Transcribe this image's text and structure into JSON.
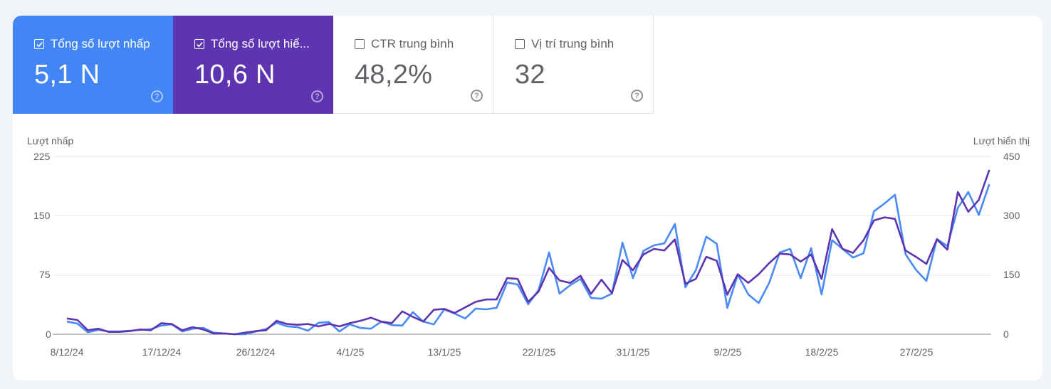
{
  "cards": [
    {
      "label": "Tổng số lượt nhấp",
      "value": "5,1 N",
      "checked": true,
      "color": "#4285f4"
    },
    {
      "label": "Tổng số lượt hiể...",
      "value": "10,6 N",
      "checked": true,
      "color": "#5e35b1"
    },
    {
      "label": "CTR trung bình",
      "value": "48,2%",
      "checked": false,
      "color": "#ffffff"
    },
    {
      "label": "Vị trí trung bình",
      "value": "32",
      "checked": false,
      "color": "#ffffff"
    }
  ],
  "help_glyph": "?",
  "chart": {
    "left_axis_title": "Lượt nhấp",
    "right_axis_title": "Lượt hiển thị",
    "left_ticks": [
      "225",
      "150",
      "75",
      "0"
    ],
    "right_ticks": [
      "450",
      "300",
      "150",
      "0"
    ],
    "x_ticks": [
      "8/12/24",
      "17/12/24",
      "26/12/24",
      "4/1/25",
      "13/1/25",
      "22/1/25",
      "31/1/25",
      "9/2/25",
      "18/2/25",
      "27/2/25"
    ]
  },
  "chart_data": {
    "type": "line",
    "title": "",
    "x_start": "8/12/24",
    "x_interval": "1 day",
    "x_tick_labels": [
      "8/12/24",
      "17/12/24",
      "26/12/24",
      "4/1/25",
      "13/1/25",
      "22/1/25",
      "31/1/25",
      "9/2/25",
      "18/2/25",
      "27/2/25"
    ],
    "ylabel_left": "Lượt nhấp",
    "ylabel_right": "Lượt hiển thị",
    "ylim_left": [
      0,
      225
    ],
    "ylim_right": [
      0,
      450
    ],
    "grid": true,
    "series": [
      {
        "name": "Lượt nhấp",
        "axis": "left",
        "color": "#5e35b1",
        "values": [
          20,
          18,
          5,
          7,
          3,
          3,
          4,
          6,
          5,
          14,
          13,
          5,
          9,
          6,
          1,
          1,
          0,
          2,
          4,
          5,
          17,
          13,
          12,
          13,
          10,
          13,
          10,
          14,
          17,
          21,
          16,
          14,
          29,
          22,
          16,
          31,
          32,
          27,
          34,
          41,
          44,
          44,
          71,
          70,
          41,
          54,
          84,
          68,
          65,
          74,
          51,
          69,
          52,
          94,
          81,
          101,
          108,
          106,
          120,
          64,
          70,
          98,
          93,
          50,
          76,
          65,
          76,
          90,
          102,
          101,
          92,
          101,
          70,
          133,
          108,
          103,
          119,
          144,
          148,
          146,
          106,
          98,
          89,
          120,
          107,
          180,
          155,
          170,
          208
        ]
      },
      {
        "name": "Lượt hiển thị",
        "axis": "right",
        "color": "#4a8af4",
        "values": [
          32,
          27,
          5,
          11,
          7,
          7,
          9,
          11,
          13,
          22,
          25,
          7,
          14,
          16,
          4,
          2,
          0,
          0,
          7,
          13,
          29,
          20,
          18,
          9,
          29,
          31,
          7,
          25,
          16,
          14,
          32,
          23,
          22,
          56,
          32,
          25,
          63,
          52,
          40,
          65,
          63,
          67,
          131,
          126,
          76,
          112,
          207,
          103,
          124,
          140,
          92,
          90,
          103,
          232,
          142,
          211,
          225,
          230,
          279,
          119,
          162,
          247,
          229,
          67,
          151,
          101,
          79,
          130,
          207,
          216,
          142,
          218,
          101,
          238,
          216,
          194,
          205,
          311,
          331,
          353,
          203,
          163,
          135,
          241,
          223,
          320,
          360,
          302,
          380
        ]
      }
    ]
  }
}
